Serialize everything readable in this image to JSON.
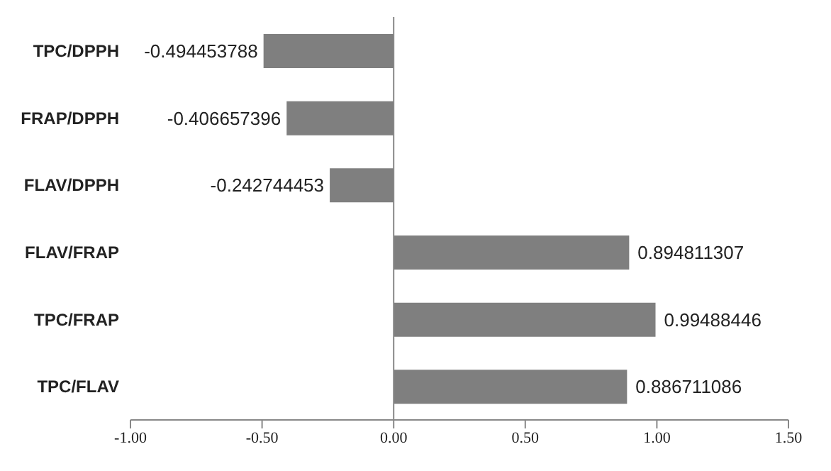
{
  "chart_data": {
    "type": "bar",
    "orientation": "horizontal",
    "categories": [
      "TPC/DPPH",
      "FRAP/DPPH",
      "FLAV/DPPH",
      "FLAV/FRAP",
      "TPC/FRAP",
      "TPC/FLAV"
    ],
    "values": [
      -0.494453788,
      -0.406657396,
      -0.242744453,
      0.894811307,
      0.99488446,
      0.886711086
    ],
    "color": "#7f7f7f",
    "data_labels": true,
    "legend": false,
    "ref_lines": [
      {
        "axis": "x",
        "value": 0,
        "color": "#888888"
      }
    ],
    "xlim": [
      -1,
      1.5
    ],
    "xticks": [
      {
        "value": -1,
        "label": "-1.00"
      },
      {
        "value": -0.5,
        "label": "-0.50"
      },
      {
        "value": 0,
        "label": "0.00"
      },
      {
        "value": 0.5,
        "label": "0.50"
      },
      {
        "value": 1,
        "label": "1.00"
      },
      {
        "value": 1.5,
        "label": "1.50"
      }
    ]
  }
}
